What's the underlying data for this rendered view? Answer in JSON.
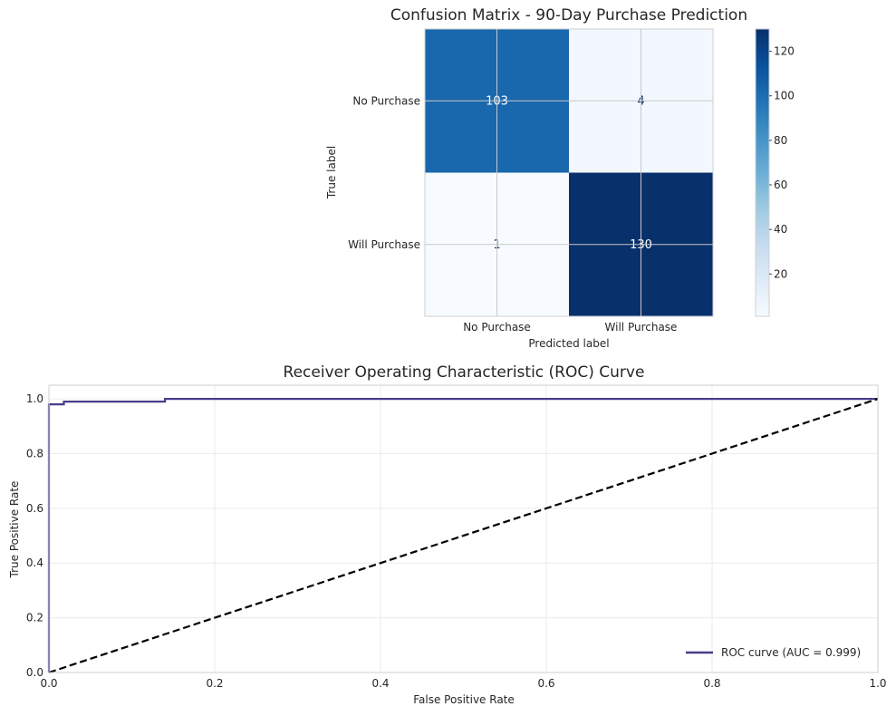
{
  "chart_data": [
    {
      "type": "heatmap",
      "title": "Confusion Matrix - 90-Day Purchase Prediction",
      "xlabel": "Predicted label",
      "ylabel": "True label",
      "x_categories": [
        "No Purchase",
        "Will Purchase"
      ],
      "y_categories": [
        "No Purchase",
        "Will Purchase"
      ],
      "matrix": [
        [
          103,
          4
        ],
        [
          1,
          130
        ]
      ],
      "colormap": "Blues",
      "colorbar": {
        "min": 1,
        "max": 130,
        "ticks": [
          20,
          40,
          60,
          80,
          100,
          120
        ]
      },
      "grid": true
    },
    {
      "type": "line",
      "title": "Receiver Operating Characteristic (ROC) Curve",
      "xlabel": "False Positive Rate",
      "ylabel": "True Positive Rate",
      "xlim": [
        0,
        1
      ],
      "ylim": [
        0,
        1.05
      ],
      "xticks": [
        0,
        0.2,
        0.4,
        0.6,
        0.8,
        1
      ],
      "yticks": [
        0,
        0.2,
        0.4,
        0.6,
        0.8,
        1
      ],
      "grid": true,
      "legend_position": "lower-right",
      "series": [
        {
          "name": "ROC curve (AUC = 0.999)",
          "color": "#483d8b",
          "style": "solid",
          "x": [
            0,
            0,
            0.018,
            0.018,
            0.14,
            0.14,
            1
          ],
          "y": [
            0,
            0.98,
            0.98,
            0.99,
            0.99,
            1,
            1
          ]
        },
        {
          "color": "#000000",
          "style": "dashed",
          "x": [
            0,
            1
          ],
          "y": [
            0,
            1
          ]
        }
      ]
    }
  ]
}
